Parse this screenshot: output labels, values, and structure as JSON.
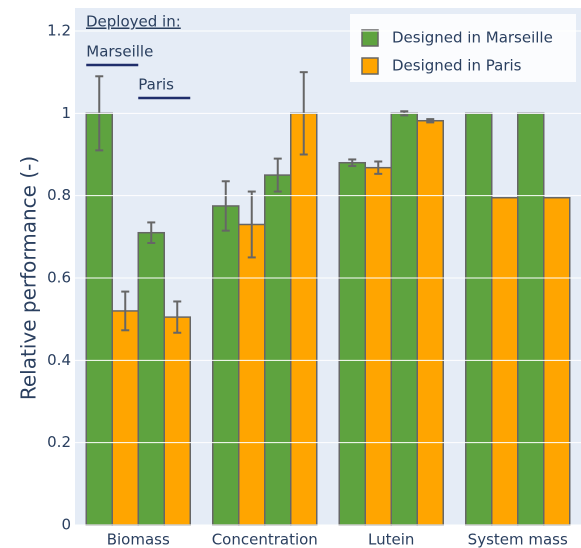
{
  "chart_data": {
    "type": "grouped_bar",
    "y_label": "Relative performance (-)",
    "categories": [
      "Biomass",
      "Concentration",
      "Lutein",
      "System mass"
    ],
    "series": [
      {
        "name": "Designed in Marseille",
        "color": "#5ea33f"
      },
      {
        "name": "Designed in Paris",
        "color": "#ffa500"
      }
    ],
    "deployed_label": "Deployed in:",
    "deployments": [
      {
        "name": "Marseille",
        "values": [
          [
            1,
            0.775,
            0.88,
            1
          ],
          [
            0.52,
            0.73,
            0.868,
            0.795
          ]
        ],
        "errors": [
          [
            0.09,
            0.06,
            0.008,
            null
          ],
          [
            0.047,
            0.08,
            0.015,
            null
          ]
        ]
      },
      {
        "name": "Paris",
        "values": [
          [
            0.71,
            0.85,
            1,
            1
          ],
          [
            0.505,
            1,
            0.982,
            0.795
          ]
        ],
        "errors": [
          [
            0.025,
            0.04,
            0.005,
            null
          ],
          [
            0.038,
            0.1,
            0.004,
            null
          ]
        ]
      }
    ],
    "ylim": [
      0,
      1.2
    ],
    "yticks": [
      0,
      0.2,
      0.4,
      0.6,
      0.8,
      1,
      1.2
    ],
    "grid": true
  }
}
